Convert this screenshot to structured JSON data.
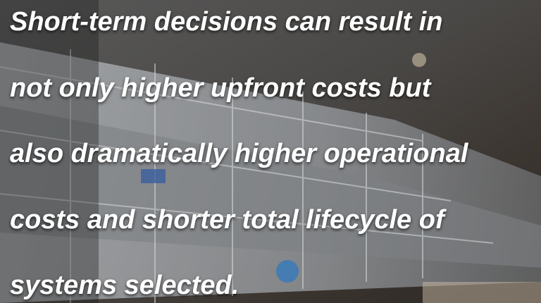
{
  "text": {
    "lines": [
      "Short-term decisions can result in",
      "not only higher upfront costs but",
      "also dramatically higher operational",
      "costs and shorter total lifecycle of",
      "systems selected."
    ]
  }
}
